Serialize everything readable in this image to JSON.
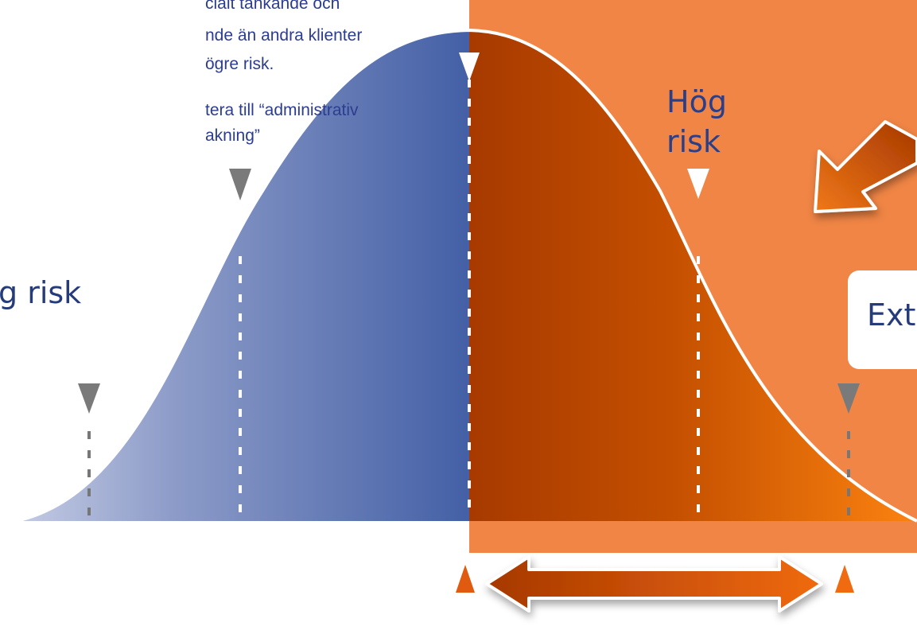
{
  "notes": {
    "line1": "cialt tänkande och",
    "line2": "nde än andra klienter",
    "line3": "ögre risk.",
    "line4": "tera till “administrativ",
    "line5": "akning”"
  },
  "labels": {
    "low_risk": "g risk",
    "high_risk_line1": "Hög",
    "high_risk_line2": "risk",
    "extreme_risk_partial": "Ext"
  },
  "colors": {
    "blue_dark": "#4663a6",
    "blue_light": "#b9c0dd",
    "orange_dark": "#a93800",
    "orange_light": "#f07a10",
    "panel_orange": "#f08545",
    "text_blue": "#2a3d8a",
    "marker_gray": "#7a7a7a"
  },
  "icons": {
    "markers": "triangle-marker-icon",
    "arrows": "double-arrow-icon"
  }
}
